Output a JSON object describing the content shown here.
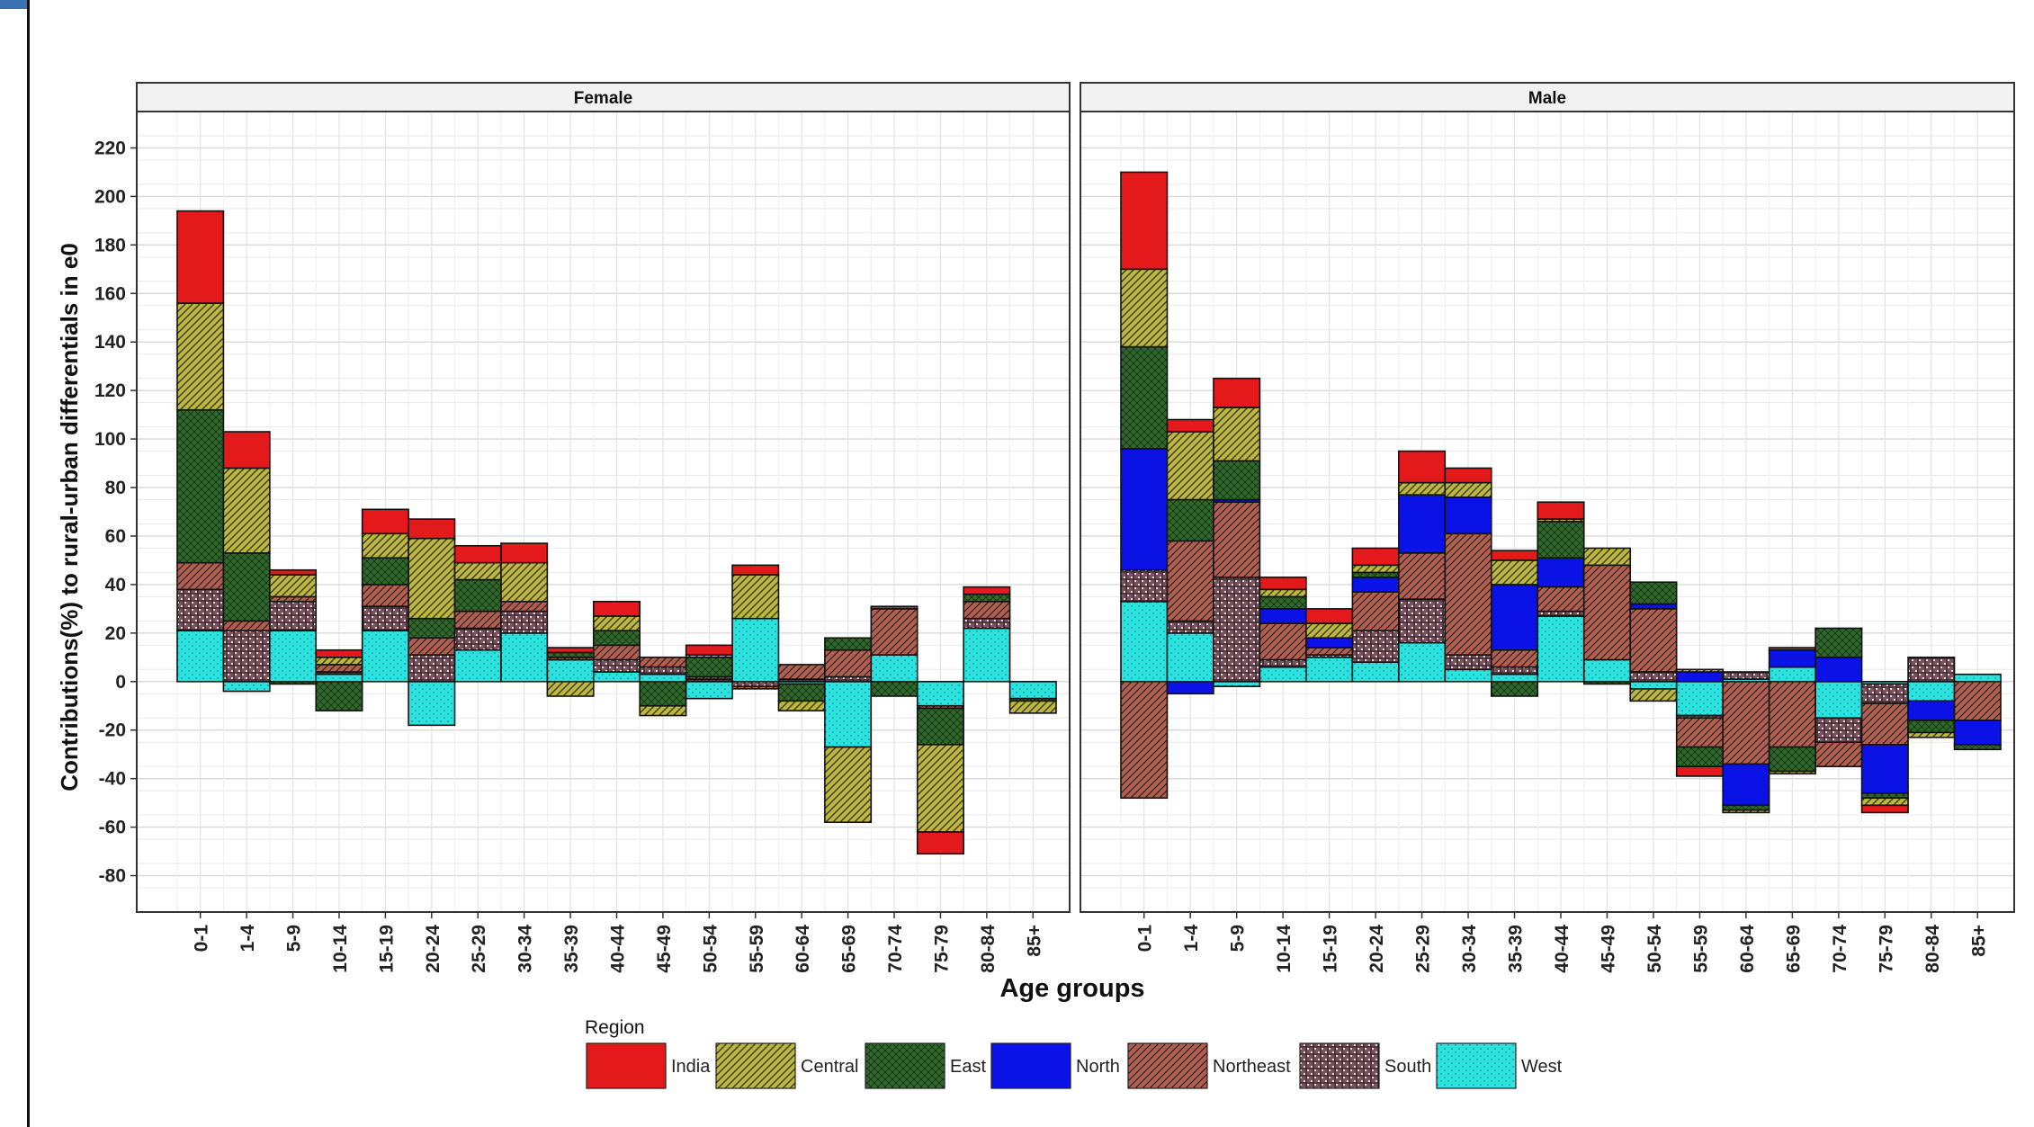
{
  "chart_data": {
    "type": "bar",
    "stacked": true,
    "ylabel": "Contributions(%) to rural-urban differentials in e0",
    "xlabel": "Age groups",
    "ylim": [
      -95,
      235
    ],
    "yticks": [
      -80,
      -60,
      -40,
      -20,
      0,
      20,
      40,
      60,
      80,
      100,
      120,
      140,
      160,
      180,
      200,
      220
    ],
    "grid": true,
    "legend_title": "Region",
    "legend_position": "bottom",
    "categories": [
      "0-1",
      "1-4",
      "5-9",
      "10-14",
      "15-19",
      "20-24",
      "25-29",
      "30-34",
      "35-39",
      "40-44",
      "45-49",
      "50-54",
      "55-59",
      "60-64",
      "65-69",
      "70-74",
      "75-79",
      "80-84",
      "85+"
    ],
    "regions": [
      {
        "name": "India",
        "color": "#e3191c",
        "pattern": "none"
      },
      {
        "name": "Central",
        "color": "#bdb83c",
        "pattern": "diag"
      },
      {
        "name": "East",
        "color": "#2e6b2a",
        "pattern": "cross"
      },
      {
        "name": "North",
        "color": "#0a12e6",
        "pattern": "none"
      },
      {
        "name": "Northeast",
        "color": "#b35e4e",
        "pattern": "diag"
      },
      {
        "name": "South",
        "color": "#7a5560",
        "pattern": "grid"
      },
      {
        "name": "West",
        "color": "#28e3e0",
        "pattern": "dots"
      }
    ],
    "panels": [
      {
        "title": "Female",
        "series": {
          "West": [
            21,
            -4,
            21,
            3,
            21,
            -18,
            13,
            20,
            9,
            4,
            3,
            -7,
            26,
            -1,
            -27,
            11,
            -10,
            22,
            -7
          ],
          "South": [
            17,
            21,
            12,
            1,
            10,
            11,
            9,
            9,
            0,
            5,
            3,
            1,
            -2,
            1,
            2,
            0,
            0,
            4,
            0
          ],
          "Northeast": [
            11,
            4,
            2,
            3,
            9,
            7,
            7,
            4,
            1,
            6,
            4,
            1,
            -1,
            6,
            11,
            19,
            -1,
            7,
            0
          ],
          "North": [
            0,
            0,
            0,
            0,
            0,
            0,
            0,
            0,
            0,
            0,
            0,
            0,
            0,
            0,
            0,
            0,
            0,
            0,
            0
          ],
          "East": [
            63,
            28,
            -1,
            -12,
            11,
            8,
            13,
            0,
            2,
            6,
            -10,
            8,
            0,
            -7,
            5,
            -6,
            -15,
            3,
            -1
          ],
          "Central": [
            44,
            35,
            9,
            3,
            10,
            33,
            7,
            16,
            -6,
            6,
            -4,
            1,
            18,
            -4,
            -31,
            0,
            -36,
            0,
            -5
          ],
          "India": [
            38,
            15,
            2,
            3,
            10,
            8,
            7,
            8,
            2,
            6,
            0,
            4,
            4,
            0,
            0,
            1,
            -9,
            3,
            0
          ]
        }
      },
      {
        "title": "Male",
        "series": {
          "West": [
            33,
            20,
            -2,
            6,
            10,
            8,
            16,
            5,
            3,
            27,
            9,
            -3,
            -14,
            1,
            6,
            -15,
            -1,
            -8,
            3
          ],
          "South": [
            13,
            5,
            43,
            3,
            1,
            13,
            18,
            6,
            3,
            2,
            0,
            4,
            -1,
            3,
            0,
            -10,
            -8,
            10,
            0
          ],
          "Northeast": [
            -48,
            33,
            31,
            15,
            3,
            16,
            19,
            50,
            7,
            10,
            39,
            26,
            -12,
            -34,
            -27,
            -10,
            -17,
            0,
            -16
          ],
          "North": [
            50,
            -5,
            1,
            6,
            4,
            6,
            24,
            15,
            27,
            12,
            0,
            2,
            4,
            -17,
            7,
            10,
            -20,
            -8,
            -10
          ],
          "East": [
            42,
            17,
            16,
            5,
            0,
            2,
            0,
            0,
            -6,
            15,
            -1,
            9,
            -8,
            -2,
            -10,
            12,
            -2,
            -5,
            -2
          ],
          "Central": [
            32,
            28,
            22,
            3,
            6,
            3,
            5,
            6,
            10,
            1,
            7,
            -5,
            1,
            -1,
            -1,
            0,
            -3,
            -2,
            0
          ],
          "India": [
            40,
            5,
            12,
            5,
            6,
            7,
            13,
            6,
            4,
            7,
            0,
            0,
            -4,
            0,
            1,
            0,
            -3,
            0,
            0
          ]
        }
      }
    ]
  }
}
